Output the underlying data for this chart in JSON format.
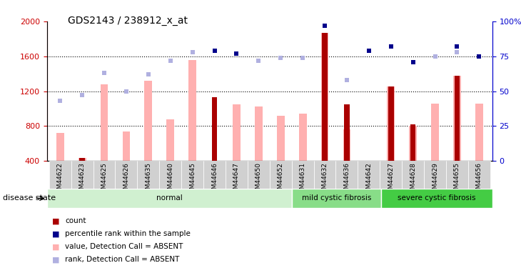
{
  "title": "GDS2143 / 238912_x_at",
  "samples": [
    "GSM44622",
    "GSM44623",
    "GSM44625",
    "GSM44626",
    "GSM44635",
    "GSM44640",
    "GSM44645",
    "GSM44646",
    "GSM44647",
    "GSM44650",
    "GSM44652",
    "GSM44631",
    "GSM44632",
    "GSM44636",
    "GSM44642",
    "GSM44627",
    "GSM44628",
    "GSM44629",
    "GSM44655",
    "GSM44656"
  ],
  "groups": [
    {
      "label": "normal",
      "start": 0,
      "end": 11,
      "color": "#d0f0d0"
    },
    {
      "label": "mild cystic fibrosis",
      "start": 11,
      "end": 15,
      "color": "#88dd88"
    },
    {
      "label": "severe cystic fibrosis",
      "start": 15,
      "end": 20,
      "color": "#44cc44"
    }
  ],
  "value_absent": [
    720,
    430,
    1280,
    740,
    1320,
    880,
    1560,
    null,
    1050,
    1020,
    920,
    940,
    1870,
    760,
    null,
    1250,
    800,
    1060,
    1380,
    1060
  ],
  "rank_absent_pct": [
    43,
    47,
    63,
    50,
    62,
    72,
    78,
    null,
    77,
    72,
    74,
    74,
    null,
    58,
    null,
    null,
    null,
    75,
    78,
    75
  ],
  "count_values": [
    null,
    430,
    null,
    null,
    null,
    null,
    null,
    1130,
    null,
    null,
    null,
    null,
    1870,
    1050,
    null,
    1250,
    820,
    null,
    1380,
    null
  ],
  "percentile_rank_pct": [
    null,
    null,
    null,
    null,
    null,
    null,
    null,
    79,
    77,
    null,
    null,
    null,
    97,
    null,
    79,
    82,
    71,
    null,
    82,
    75
  ],
  "ylim_left": [
    400,
    2000
  ],
  "ylim_right": [
    0,
    100
  ],
  "yticks_left": [
    400,
    800,
    1200,
    1600,
    2000
  ],
  "yticks_right": [
    0,
    25,
    50,
    75,
    100
  ],
  "left_axis_color": "#cc0000",
  "right_axis_color": "#0000cc",
  "bar_color_value": "#ffb0b0",
  "square_color_rank": "#b0b0e0",
  "bar_color_count": "#aa0000",
  "square_color_percentile": "#00008b",
  "background_color": "#ffffff",
  "disease_state_label": "disease state"
}
